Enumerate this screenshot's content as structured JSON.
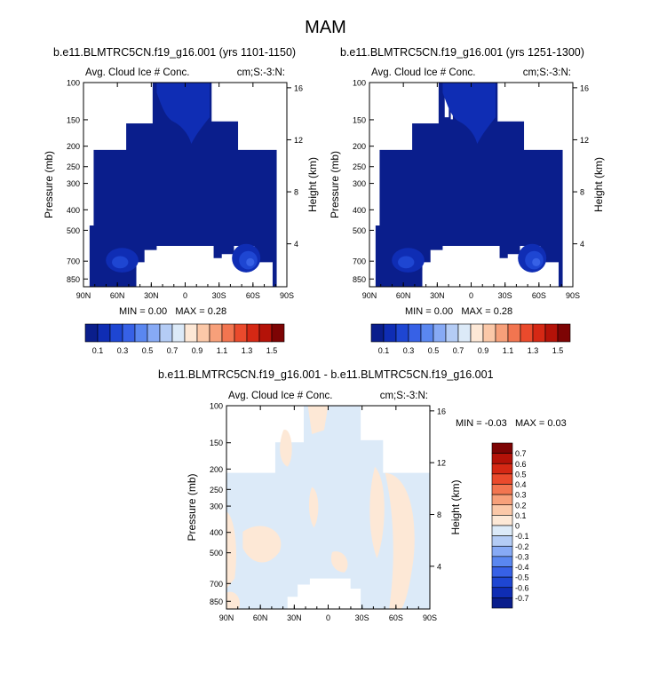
{
  "figure": {
    "season": "MAM"
  },
  "colors": {
    "fill_levels": [
      "#0a1e8c",
      "#0f2db4",
      "#1e46d2",
      "#3761e6",
      "#5a87f0",
      "#87aaf5",
      "#b4ccf5",
      "#dceaf8",
      "#fde8d6",
      "#fbc8a8",
      "#f7a07a",
      "#f27550",
      "#ea4a2c",
      "#d52814",
      "#b41208",
      "#7d0404"
    ],
    "diff_levels": [
      "#0a1e8c",
      "#0f2db4",
      "#1e46d2",
      "#3761e6",
      "#5a87f0",
      "#87aaf5",
      "#b4ccf5",
      "#dceaf8",
      "#fde8d6",
      "#fbc8a8",
      "#f7a07a",
      "#f27550",
      "#ea4a2c",
      "#d52814",
      "#b41208",
      "#7d0404"
    ]
  },
  "chart_data": [
    {
      "type": "heatmap",
      "title": "b.e11.BLMTRC5CN.f19_g16.001 (yrs 1101-1150)",
      "left_string": "Avg. Cloud Ice # Conc.",
      "right_string": "cm;S:-3:N:",
      "ylabel": "Pressure (mb)",
      "ylabel_right": "Height (km)",
      "x_ticks": [
        "90N",
        "60N",
        "30N",
        "0",
        "30S",
        "60S",
        "90S"
      ],
      "y_ticks": [
        "100",
        "150",
        "200",
        "250",
        "300",
        "400",
        "500",
        "700",
        "850"
      ],
      "height_ticks": [
        "16",
        "12",
        "8",
        "4"
      ],
      "min_label": "MIN =",
      "min_value": "0.00",
      "max_label": "MAX =",
      "max_value": "0.28",
      "levels": [
        "0.1",
        "0.3",
        "0.5",
        "0.7",
        "0.9",
        "1.1",
        "1.3",
        "1.5"
      ]
    },
    {
      "type": "heatmap",
      "title": "b.e11.BLMTRC5CN.f19_g16.001 (yrs 1251-1300)",
      "left_string": "Avg. Cloud Ice # Conc.",
      "right_string": "cm;S:-3:N:",
      "ylabel": "Pressure (mb)",
      "ylabel_right": "Height (km)",
      "x_ticks": [
        "90N",
        "60N",
        "30N",
        "0",
        "30S",
        "60S",
        "90S"
      ],
      "y_ticks": [
        "100",
        "150",
        "200",
        "250",
        "300",
        "400",
        "500",
        "700",
        "850"
      ],
      "height_ticks": [
        "16",
        "12",
        "8",
        "4"
      ],
      "min_label": "MIN =",
      "min_value": "0.00",
      "max_label": "MAX =",
      "max_value": "0.28",
      "levels": [
        "0.1",
        "0.3",
        "0.5",
        "0.7",
        "0.9",
        "1.1",
        "1.3",
        "1.5"
      ]
    },
    {
      "type": "heatmap",
      "title": "b.e11.BLMTRC5CN.f19_g16.001 - b.e11.BLMTRC5CN.f19_g16.001",
      "left_string": "Avg. Cloud Ice # Conc.",
      "right_string": "cm;S:-3:N:",
      "ylabel": "Pressure (mb)",
      "ylabel_right": "Height (km)",
      "x_ticks": [
        "90N",
        "60N",
        "30N",
        "0",
        "30S",
        "60S",
        "90S"
      ],
      "y_ticks": [
        "100",
        "150",
        "200",
        "250",
        "300",
        "400",
        "500",
        "700",
        "850"
      ],
      "height_ticks": [
        "16",
        "12",
        "8",
        "4"
      ],
      "min_label": "MIN =",
      "min_value": "-0.03",
      "max_label": "MAX =",
      "max_value": "0.03",
      "levels": [
        "0.7",
        "0.6",
        "0.5",
        "0.4",
        "0.3",
        "0.2",
        "0.1",
        "0",
        "-0.1",
        "-0.2",
        "-0.3",
        "-0.4",
        "-0.5",
        "-0.6",
        "-0.7"
      ]
    }
  ]
}
